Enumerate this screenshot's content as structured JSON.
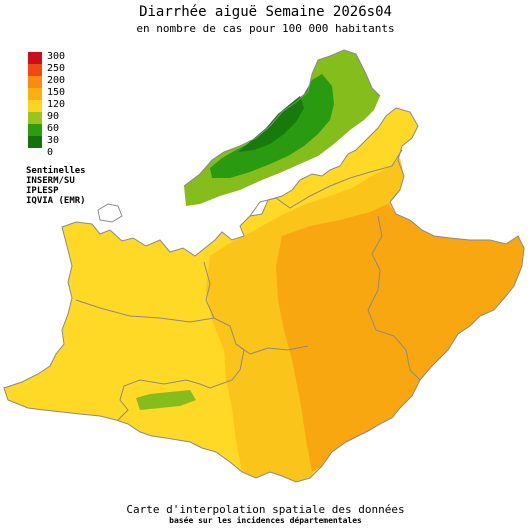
{
  "title": "Diarrhée aiguë Semaine 2026s04",
  "subtitle": "en nombre de cas pour 100 000 habitants",
  "legend": {
    "items": [
      {
        "label": "300",
        "color": "#cc0e1c"
      },
      {
        "label": "250",
        "color": "#f04a12"
      },
      {
        "label": "200",
        "color": "#f88c10"
      },
      {
        "label": "150",
        "color": "#f9b112"
      },
      {
        "label": "120",
        "color": "#ffd31f"
      },
      {
        "label": "90",
        "color": "#9ac51c"
      },
      {
        "label": "60",
        "color": "#2f9c10"
      },
      {
        "label": "30",
        "color": "#13720b"
      },
      {
        "label": "0",
        "color": "#ffffff"
      }
    ]
  },
  "sources": [
    "Sentinelles",
    "INSERM/SU",
    "IPLESP",
    "IQVIA (EMR)"
  ],
  "footer": {
    "line1": "Carte d'interpolation spatiale des données",
    "line2": "basée sur les incidences départementales"
  },
  "map": {
    "region_colors": {
      "base_yellow": "#ffd925",
      "light_orange": "#fbc41a",
      "orange": "#f9a710",
      "light_green": "#85bd1c",
      "green": "#2a9a10",
      "dark_green": "#177b0c",
      "border": "#8a8a8a"
    }
  }
}
